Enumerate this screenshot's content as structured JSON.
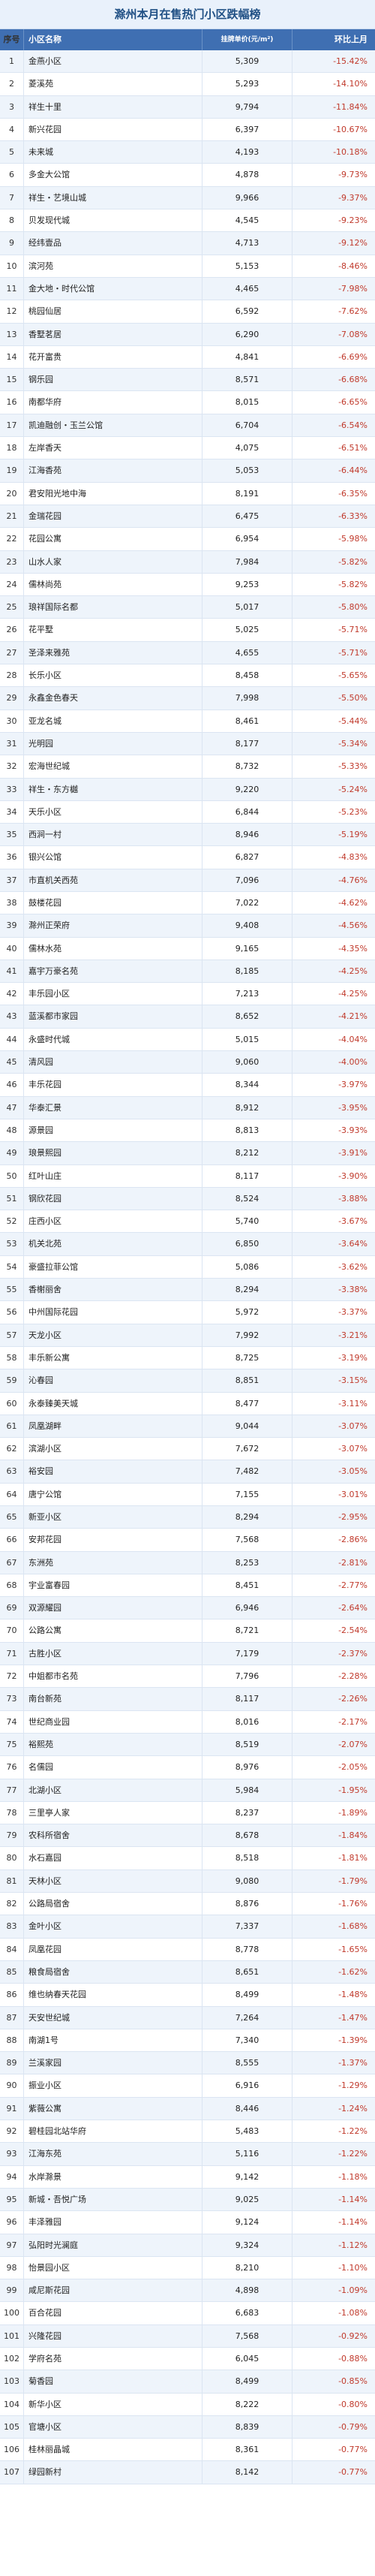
{
  "title": "滁州本月在售热门小区跌幅榜",
  "headers": {
    "rank": "序号",
    "name": "小区名称",
    "price": "挂牌单价(元/m²)",
    "change": "环比上月"
  },
  "rows": [
    {
      "rank": "1",
      "name": "金燕小区",
      "price": "5,309",
      "change": "-15.42%"
    },
    {
      "rank": "2",
      "name": "菱溪苑",
      "price": "5,293",
      "change": "-14.10%"
    },
    {
      "rank": "3",
      "name": "祥生十里",
      "price": "9,794",
      "change": "-11.84%"
    },
    {
      "rank": "4",
      "name": "新兴花园",
      "price": "6,397",
      "change": "-10.67%"
    },
    {
      "rank": "5",
      "name": "未来城",
      "price": "4,193",
      "change": "-10.18%"
    },
    {
      "rank": "6",
      "name": "多金大公馆",
      "price": "4,878",
      "change": "-9.73%"
    },
    {
      "rank": "7",
      "name": "祥生・艺境山城",
      "price": "9,966",
      "change": "-9.37%"
    },
    {
      "rank": "8",
      "name": "贝发现代城",
      "price": "4,545",
      "change": "-9.23%"
    },
    {
      "rank": "9",
      "name": "经纬壹品",
      "price": "4,713",
      "change": "-9.12%"
    },
    {
      "rank": "10",
      "name": "滨河苑",
      "price": "5,153",
      "change": "-8.46%"
    },
    {
      "rank": "11",
      "name": "金大地・时代公馆",
      "price": "4,465",
      "change": "-7.98%"
    },
    {
      "rank": "12",
      "name": "桃园仙居",
      "price": "6,592",
      "change": "-7.62%"
    },
    {
      "rank": "13",
      "name": "香墅茗居",
      "price": "6,290",
      "change": "-7.08%"
    },
    {
      "rank": "14",
      "name": "花开富贵",
      "price": "4,841",
      "change": "-6.69%"
    },
    {
      "rank": "15",
      "name": "钢乐园",
      "price": "8,571",
      "change": "-6.68%"
    },
    {
      "rank": "16",
      "name": "南都华府",
      "price": "8,015",
      "change": "-6.65%"
    },
    {
      "rank": "17",
      "name": "凯迪融创・玉兰公馆",
      "price": "6,704",
      "change": "-6.54%"
    },
    {
      "rank": "18",
      "name": "左岸香天",
      "price": "4,075",
      "change": "-6.51%"
    },
    {
      "rank": "19",
      "name": "江海香苑",
      "price": "5,053",
      "change": "-6.44%"
    },
    {
      "rank": "20",
      "name": "君安阳光地中海",
      "price": "8,191",
      "change": "-6.35%"
    },
    {
      "rank": "21",
      "name": "金瑞花园",
      "price": "6,475",
      "change": "-6.33%"
    },
    {
      "rank": "22",
      "name": "花园公寓",
      "price": "6,954",
      "change": "-5.98%"
    },
    {
      "rank": "23",
      "name": "山水人家",
      "price": "7,984",
      "change": "-5.82%"
    },
    {
      "rank": "24",
      "name": "儒林尚苑",
      "price": "9,253",
      "change": "-5.82%"
    },
    {
      "rank": "25",
      "name": "琅祥国际名都",
      "price": "5,017",
      "change": "-5.80%"
    },
    {
      "rank": "26",
      "name": "花平墅",
      "price": "5,025",
      "change": "-5.71%"
    },
    {
      "rank": "27",
      "name": "圣泽来雅苑",
      "price": "4,655",
      "change": "-5.71%"
    },
    {
      "rank": "28",
      "name": "长乐小区",
      "price": "8,458",
      "change": "-5.65%"
    },
    {
      "rank": "29",
      "name": "永鑫金色春天",
      "price": "7,998",
      "change": "-5.50%"
    },
    {
      "rank": "30",
      "name": "亚龙名城",
      "price": "8,461",
      "change": "-5.44%"
    },
    {
      "rank": "31",
      "name": "光明园",
      "price": "8,177",
      "change": "-5.34%"
    },
    {
      "rank": "32",
      "name": "宏海世纪城",
      "price": "8,732",
      "change": "-5.33%"
    },
    {
      "rank": "33",
      "name": "祥生・东方樾",
      "price": "9,220",
      "change": "-5.24%"
    },
    {
      "rank": "34",
      "name": "天乐小区",
      "price": "6,844",
      "change": "-5.23%"
    },
    {
      "rank": "35",
      "name": "西涧一村",
      "price": "8,946",
      "change": "-5.19%"
    },
    {
      "rank": "36",
      "name": "银兴公馆",
      "price": "6,827",
      "change": "-4.83%"
    },
    {
      "rank": "37",
      "name": "市直机关西苑",
      "price": "7,096",
      "change": "-4.76%"
    },
    {
      "rank": "38",
      "name": "鼓楼花园",
      "price": "7,022",
      "change": "-4.62%"
    },
    {
      "rank": "39",
      "name": "滁州正荣府",
      "price": "9,408",
      "change": "-4.56%"
    },
    {
      "rank": "40",
      "name": "儒林水苑",
      "price": "9,165",
      "change": "-4.35%"
    },
    {
      "rank": "41",
      "name": "嘉宇万豪名苑",
      "price": "8,185",
      "change": "-4.25%"
    },
    {
      "rank": "42",
      "name": "丰乐园小区",
      "price": "7,213",
      "change": "-4.25%"
    },
    {
      "rank": "43",
      "name": "蓝溪都市家园",
      "price": "8,652",
      "change": "-4.21%"
    },
    {
      "rank": "44",
      "name": "永盛时代城",
      "price": "5,015",
      "change": "-4.04%"
    },
    {
      "rank": "45",
      "name": "清风园",
      "price": "9,060",
      "change": "-4.00%"
    },
    {
      "rank": "46",
      "name": "丰乐花园",
      "price": "8,344",
      "change": "-3.97%"
    },
    {
      "rank": "47",
      "name": "华泰汇景",
      "price": "8,912",
      "change": "-3.95%"
    },
    {
      "rank": "48",
      "name": "源景园",
      "price": "8,813",
      "change": "-3.93%"
    },
    {
      "rank": "49",
      "name": "琅景熙园",
      "price": "8,212",
      "change": "-3.91%"
    },
    {
      "rank": "50",
      "name": "红叶山庄",
      "price": "8,117",
      "change": "-3.90%"
    },
    {
      "rank": "51",
      "name": "钢欣花园",
      "price": "8,524",
      "change": "-3.88%"
    },
    {
      "rank": "52",
      "name": "庄西小区",
      "price": "5,740",
      "change": "-3.67%"
    },
    {
      "rank": "53",
      "name": "机关北苑",
      "price": "6,850",
      "change": "-3.64%"
    },
    {
      "rank": "54",
      "name": "豪盛拉菲公馆",
      "price": "5,086",
      "change": "-3.62%"
    },
    {
      "rank": "55",
      "name": "香榭丽舍",
      "price": "8,294",
      "change": "-3.38%"
    },
    {
      "rank": "56",
      "name": "中州国际花园",
      "price": "5,972",
      "change": "-3.37%"
    },
    {
      "rank": "57",
      "name": "天龙小区",
      "price": "7,992",
      "change": "-3.21%"
    },
    {
      "rank": "58",
      "name": "丰乐新公寓",
      "price": "8,725",
      "change": "-3.19%"
    },
    {
      "rank": "59",
      "name": "沁春园",
      "price": "8,851",
      "change": "-3.15%"
    },
    {
      "rank": "60",
      "name": "永泰臻美天城",
      "price": "8,477",
      "change": "-3.11%"
    },
    {
      "rank": "61",
      "name": "凤凰湖畔",
      "price": "9,044",
      "change": "-3.07%"
    },
    {
      "rank": "62",
      "name": "滨湖小区",
      "price": "7,672",
      "change": "-3.07%"
    },
    {
      "rank": "63",
      "name": "裕安园",
      "price": "7,482",
      "change": "-3.05%"
    },
    {
      "rank": "64",
      "name": "唐宁公馆",
      "price": "7,155",
      "change": "-3.01%"
    },
    {
      "rank": "65",
      "name": "新亚小区",
      "price": "8,294",
      "change": "-2.95%"
    },
    {
      "rank": "66",
      "name": "安邦花园",
      "price": "7,568",
      "change": "-2.86%"
    },
    {
      "rank": "67",
      "name": "东洲苑",
      "price": "8,253",
      "change": "-2.81%"
    },
    {
      "rank": "68",
      "name": "宇业富春园",
      "price": "8,451",
      "change": "-2.77%"
    },
    {
      "rank": "69",
      "name": "双源耀园",
      "price": "6,946",
      "change": "-2.64%"
    },
    {
      "rank": "70",
      "name": "公路公寓",
      "price": "8,721",
      "change": "-2.54%"
    },
    {
      "rank": "71",
      "name": "古胜小区",
      "price": "7,179",
      "change": "-2.37%"
    },
    {
      "rank": "72",
      "name": "中姐都市名苑",
      "price": "7,796",
      "change": "-2.28%"
    },
    {
      "rank": "73",
      "name": "南台新苑",
      "price": "8,117",
      "change": "-2.26%"
    },
    {
      "rank": "74",
      "name": "世纪商业园",
      "price": "8,016",
      "change": "-2.17%"
    },
    {
      "rank": "75",
      "name": "裕熙苑",
      "price": "8,519",
      "change": "-2.07%"
    },
    {
      "rank": "76",
      "name": "名儒园",
      "price": "8,976",
      "change": "-2.05%"
    },
    {
      "rank": "77",
      "name": "北湖小区",
      "price": "5,984",
      "change": "-1.95%"
    },
    {
      "rank": "78",
      "name": "三里亭人家",
      "price": "8,237",
      "change": "-1.89%"
    },
    {
      "rank": "79",
      "name": "农科所宿舍",
      "price": "8,678",
      "change": "-1.84%"
    },
    {
      "rank": "80",
      "name": "水石嘉园",
      "price": "8,518",
      "change": "-1.81%"
    },
    {
      "rank": "81",
      "name": "天林小区",
      "price": "9,080",
      "change": "-1.79%"
    },
    {
      "rank": "82",
      "name": "公路局宿舍",
      "price": "8,876",
      "change": "-1.76%"
    },
    {
      "rank": "83",
      "name": "金叶小区",
      "price": "7,337",
      "change": "-1.68%"
    },
    {
      "rank": "84",
      "name": "凤凰花园",
      "price": "8,778",
      "change": "-1.65%"
    },
    {
      "rank": "85",
      "name": "粮食局宿舍",
      "price": "8,651",
      "change": "-1.62%"
    },
    {
      "rank": "86",
      "name": "维也纳春天花园",
      "price": "8,499",
      "change": "-1.48%"
    },
    {
      "rank": "87",
      "name": "天安世纪城",
      "price": "7,264",
      "change": "-1.47%"
    },
    {
      "rank": "88",
      "name": "南湖1号",
      "price": "7,340",
      "change": "-1.39%"
    },
    {
      "rank": "89",
      "name": "兰溪家园",
      "price": "8,555",
      "change": "-1.37%"
    },
    {
      "rank": "90",
      "name": "振业小区",
      "price": "6,916",
      "change": "-1.29%"
    },
    {
      "rank": "91",
      "name": "紫薇公寓",
      "price": "8,446",
      "change": "-1.24%"
    },
    {
      "rank": "92",
      "name": "碧桂园北站华府",
      "price": "5,483",
      "change": "-1.22%"
    },
    {
      "rank": "93",
      "name": "江海东苑",
      "price": "5,116",
      "change": "-1.22%"
    },
    {
      "rank": "94",
      "name": "水岸滁景",
      "price": "9,142",
      "change": "-1.18%"
    },
    {
      "rank": "95",
      "name": "新城・吾悦广场",
      "price": "9,025",
      "change": "-1.14%"
    },
    {
      "rank": "96",
      "name": "丰泽雅园",
      "price": "9,124",
      "change": "-1.14%"
    },
    {
      "rank": "97",
      "name": "弘阳时光澜庭",
      "price": "9,324",
      "change": "-1.12%"
    },
    {
      "rank": "98",
      "name": "怡景园小区",
      "price": "8,210",
      "change": "-1.10%"
    },
    {
      "rank": "99",
      "name": "咸尼斯花园",
      "price": "4,898",
      "change": "-1.09%"
    },
    {
      "rank": "100",
      "name": "百合花园",
      "price": "6,683",
      "change": "-1.08%"
    },
    {
      "rank": "101",
      "name": "兴隆花园",
      "price": "7,568",
      "change": "-0.92%"
    },
    {
      "rank": "102",
      "name": "学府名苑",
      "price": "6,045",
      "change": "-0.88%"
    },
    {
      "rank": "103",
      "name": "菊香园",
      "price": "8,499",
      "change": "-0.85%"
    },
    {
      "rank": "104",
      "name": "新华小区",
      "price": "8,222",
      "change": "-0.80%"
    },
    {
      "rank": "105",
      "name": "官塘小区",
      "price": "8,839",
      "change": "-0.79%"
    },
    {
      "rank": "106",
      "name": "桂林丽晶城",
      "price": "8,361",
      "change": "-0.77%"
    },
    {
      "rank": "107",
      "name": "绿园新村",
      "price": "8,142",
      "change": "-0.77%"
    }
  ]
}
